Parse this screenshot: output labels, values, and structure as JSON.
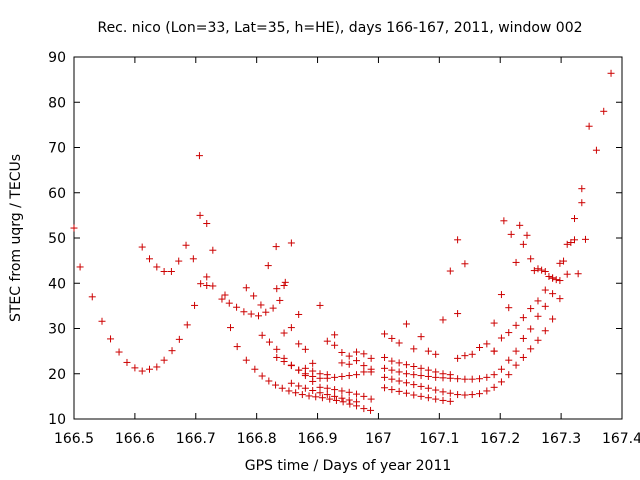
{
  "chart_data": {
    "type": "scatter",
    "title": "Rec. nico (Lon=33, Lat=35, h=HE), days 166-167, 2011, window 002",
    "xlabel": "GPS time / Days of year 2011",
    "ylabel": "STEC from uqrg / TECUs",
    "xlim": [
      166.5,
      167.4
    ],
    "ylim": [
      10,
      90
    ],
    "x_ticks": [
      166.5,
      166.6,
      166.7,
      166.8,
      166.9,
      167.0,
      167.1,
      167.2,
      167.3,
      167.4
    ],
    "x_tick_labels": [
      "166.5",
      "166.6",
      "166.7",
      "166.8",
      "166.9",
      "167",
      "167.1",
      "167.2",
      "167.3",
      "167.4"
    ],
    "y_ticks": [
      10,
      20,
      30,
      40,
      50,
      60,
      70,
      80,
      90
    ],
    "y_tick_labels": [
      "10",
      "20",
      "30",
      "40",
      "50",
      "60",
      "70",
      "80",
      "90"
    ],
    "grid": false,
    "marker": "+",
    "colors": {
      "marker": "#cc0000",
      "axis": "#000000"
    },
    "series": [
      {
        "points": [
          [
            166.5,
            52.2
          ],
          [
            166.51,
            43.6
          ],
          [
            166.53,
            37.0
          ],
          [
            166.546,
            31.6
          ],
          [
            166.56,
            27.7
          ],
          [
            166.574,
            24.8
          ],
          [
            166.587,
            22.5
          ],
          [
            166.6,
            21.3
          ],
          [
            166.612,
            20.6
          ],
          [
            166.624,
            21.0
          ],
          [
            166.636,
            21.5
          ],
          [
            166.648,
            23.0
          ],
          [
            166.661,
            25.1
          ],
          [
            166.673,
            27.6
          ],
          [
            166.686,
            30.8
          ],
          [
            166.698,
            35.1
          ],
          [
            166.708,
            39.9
          ],
          [
            166.718,
            41.4
          ],
          [
            166.728,
            39.4
          ],
          [
            166.743,
            36.5
          ],
          [
            166.755,
            35.6
          ],
          [
            166.767,
            34.7
          ],
          [
            166.779,
            33.7
          ],
          [
            166.791,
            33.2
          ],
          [
            166.803,
            32.8
          ],
          [
            166.815,
            33.6
          ],
          [
            166.827,
            34.5
          ],
          [
            166.838,
            36.2
          ],
          [
            166.847,
            40.2
          ],
          [
            166.612,
            48.0
          ],
          [
            166.624,
            45.4
          ],
          [
            166.636,
            43.6
          ],
          [
            166.648,
            42.6
          ],
          [
            166.66,
            42.6
          ],
          [
            166.672,
            44.9
          ],
          [
            166.684,
            48.4
          ],
          [
            166.696,
            45.4
          ],
          [
            166.706,
            68.2
          ],
          [
            166.707,
            55.0
          ],
          [
            166.718,
            53.2
          ],
          [
            166.728,
            47.3
          ],
          [
            166.718,
            39.5
          ],
          [
            166.748,
            37.4
          ],
          [
            166.757,
            30.2
          ],
          [
            166.768,
            26.0
          ],
          [
            166.783,
            23.0
          ],
          [
            166.797,
            21.0
          ],
          [
            166.809,
            19.5
          ],
          [
            166.82,
            18.4
          ],
          [
            166.831,
            17.5
          ],
          [
            166.842,
            16.8
          ],
          [
            166.853,
            16.2
          ],
          [
            166.864,
            15.8
          ],
          [
            166.875,
            15.4
          ],
          [
            166.886,
            15.1
          ],
          [
            166.897,
            14.9
          ],
          [
            166.908,
            14.7
          ],
          [
            166.92,
            14.4
          ],
          [
            166.931,
            14.1
          ],
          [
            166.942,
            13.8
          ],
          [
            166.953,
            13.3
          ],
          [
            166.964,
            12.9
          ],
          [
            166.976,
            12.3
          ],
          [
            166.987,
            11.9
          ],
          [
            166.783,
            39.0
          ],
          [
            166.795,
            37.2
          ],
          [
            166.807,
            35.2
          ],
          [
            166.819,
            43.9
          ],
          [
            166.832,
            48.1
          ],
          [
            166.833,
            38.8
          ],
          [
            166.845,
            39.5
          ],
          [
            166.857,
            48.9
          ],
          [
            166.869,
            33.1
          ],
          [
            166.845,
            29.0
          ],
          [
            166.857,
            30.2
          ],
          [
            166.869,
            26.6
          ],
          [
            166.88,
            25.4
          ],
          [
            166.892,
            22.3
          ],
          [
            166.904,
            35.1
          ],
          [
            166.916,
            27.2
          ],
          [
            166.928,
            26.3
          ],
          [
            166.94,
            24.7
          ],
          [
            166.952,
            23.9
          ],
          [
            166.964,
            22.9
          ],
          [
            166.976,
            21.8
          ],
          [
            166.988,
            20.4
          ],
          [
            166.809,
            28.5
          ],
          [
            166.821,
            27.0
          ],
          [
            166.833,
            25.4
          ],
          [
            166.845,
            23.4
          ],
          [
            166.857,
            21.9
          ],
          [
            166.869,
            20.8
          ],
          [
            166.88,
            20.0
          ],
          [
            166.892,
            19.4
          ],
          [
            166.904,
            19.0
          ],
          [
            166.916,
            19.0
          ],
          [
            166.928,
            19.2
          ],
          [
            166.94,
            19.4
          ],
          [
            166.952,
            19.6
          ],
          [
            166.964,
            19.8
          ],
          [
            166.976,
            20.4
          ],
          [
            166.988,
            21.0
          ],
          [
            166.833,
            23.6
          ],
          [
            166.845,
            22.7
          ],
          [
            166.857,
            21.8
          ],
          [
            166.869,
            20.8
          ],
          [
            166.88,
            19.6
          ],
          [
            166.892,
            18.3
          ],
          [
            166.904,
            17.0
          ],
          [
            166.916,
            16.8
          ],
          [
            166.928,
            16.5
          ],
          [
            166.94,
            16.2
          ],
          [
            166.952,
            15.9
          ],
          [
            166.964,
            15.5
          ],
          [
            166.976,
            15.0
          ],
          [
            166.988,
            14.4
          ],
          [
            166.857,
            17.9
          ],
          [
            166.869,
            17.3
          ],
          [
            166.88,
            16.8
          ],
          [
            166.892,
            16.3
          ],
          [
            166.904,
            15.8
          ],
          [
            166.916,
            15.4
          ],
          [
            166.928,
            15.0
          ],
          [
            166.94,
            14.6
          ],
          [
            166.952,
            14.2
          ],
          [
            166.964,
            13.8
          ],
          [
            166.88,
            21.2
          ],
          [
            166.892,
            20.6
          ],
          [
            166.904,
            20.0
          ],
          [
            166.916,
            19.8
          ],
          [
            166.928,
            28.6
          ],
          [
            166.94,
            22.4
          ],
          [
            166.952,
            22.1
          ],
          [
            166.964,
            24.8
          ],
          [
            166.976,
            24.4
          ],
          [
            166.988,
            23.4
          ],
          [
            167.01,
            28.8
          ],
          [
            167.022,
            27.8
          ],
          [
            167.034,
            26.8
          ],
          [
            167.046,
            31.0
          ],
          [
            167.058,
            25.5
          ],
          [
            167.07,
            28.2
          ],
          [
            167.082,
            25.0
          ],
          [
            167.094,
            24.3
          ],
          [
            167.106,
            31.9
          ],
          [
            167.118,
            42.7
          ],
          [
            167.13,
            49.6
          ],
          [
            167.13,
            33.3
          ],
          [
            167.142,
            44.3
          ],
          [
            167.01,
            23.6
          ],
          [
            167.022,
            22.8
          ],
          [
            167.034,
            22.4
          ],
          [
            167.046,
            22.0
          ],
          [
            167.058,
            21.6
          ],
          [
            167.07,
            21.2
          ],
          [
            167.082,
            20.8
          ],
          [
            167.094,
            20.4
          ],
          [
            167.106,
            20.0
          ],
          [
            167.118,
            19.8
          ],
          [
            167.13,
            23.4
          ],
          [
            167.142,
            24.0
          ],
          [
            167.154,
            24.3
          ],
          [
            167.166,
            25.8
          ],
          [
            167.178,
            26.6
          ],
          [
            167.19,
            25.0
          ],
          [
            167.19,
            31.2
          ],
          [
            167.202,
            27.9
          ],
          [
            167.214,
            29.1
          ],
          [
            167.226,
            30.7
          ],
          [
            167.238,
            32.4
          ],
          [
            167.25,
            34.4
          ],
          [
            167.262,
            36.1
          ],
          [
            167.274,
            38.5
          ],
          [
            167.286,
            41.2
          ],
          [
            167.298,
            44.4
          ],
          [
            167.31,
            48.6
          ],
          [
            167.322,
            54.3
          ],
          [
            167.334,
            60.9
          ],
          [
            167.346,
            74.7
          ],
          [
            167.358,
            69.4
          ],
          [
            167.37,
            78.0
          ],
          [
            167.382,
            86.4
          ],
          [
            167.01,
            16.9
          ],
          [
            167.022,
            16.5
          ],
          [
            167.034,
            16.1
          ],
          [
            167.046,
            15.7
          ],
          [
            167.058,
            15.3
          ],
          [
            167.07,
            15.0
          ],
          [
            167.082,
            14.7
          ],
          [
            167.094,
            14.4
          ],
          [
            167.106,
            14.1
          ],
          [
            167.118,
            13.9
          ],
          [
            167.01,
            19.2
          ],
          [
            167.022,
            18.8
          ],
          [
            167.034,
            18.4
          ],
          [
            167.046,
            18.0
          ],
          [
            167.058,
            17.6
          ],
          [
            167.07,
            17.2
          ],
          [
            167.082,
            16.8
          ],
          [
            167.094,
            16.4
          ],
          [
            167.106,
            16.0
          ],
          [
            167.118,
            15.7
          ],
          [
            167.13,
            15.4
          ],
          [
            167.142,
            15.3
          ],
          [
            167.154,
            15.4
          ],
          [
            167.166,
            15.6
          ],
          [
            167.178,
            16.2
          ],
          [
            167.19,
            17.0
          ],
          [
            167.202,
            18.2
          ],
          [
            167.214,
            19.8
          ],
          [
            167.226,
            21.9
          ],
          [
            167.238,
            23.6
          ],
          [
            167.25,
            25.5
          ],
          [
            167.262,
            27.4
          ],
          [
            167.274,
            29.5
          ],
          [
            167.286,
            32.1
          ],
          [
            167.298,
            36.6
          ],
          [
            167.31,
            42.0
          ],
          [
            167.322,
            49.6
          ],
          [
            167.334,
            57.8
          ],
          [
            167.01,
            21.2
          ],
          [
            167.022,
            20.8
          ],
          [
            167.034,
            20.4
          ],
          [
            167.046,
            20.0
          ],
          [
            167.058,
            19.8
          ],
          [
            167.07,
            19.6
          ],
          [
            167.082,
            19.4
          ],
          [
            167.094,
            19.2
          ],
          [
            167.106,
            19.1
          ],
          [
            167.118,
            19.0
          ],
          [
            167.13,
            18.9
          ],
          [
            167.142,
            18.8
          ],
          [
            167.154,
            18.8
          ],
          [
            167.166,
            18.9
          ],
          [
            167.178,
            19.2
          ],
          [
            167.19,
            19.8
          ],
          [
            167.202,
            21.0
          ],
          [
            167.214,
            23.0
          ],
          [
            167.226,
            25.0
          ],
          [
            167.238,
            27.8
          ],
          [
            167.25,
            29.9
          ],
          [
            167.262,
            32.7
          ],
          [
            167.274,
            34.9
          ],
          [
            167.286,
            37.7
          ],
          [
            167.19,
            25.0
          ],
          [
            167.202,
            37.5
          ],
          [
            167.214,
            34.6
          ],
          [
            167.226,
            44.6
          ],
          [
            167.238,
            48.6
          ],
          [
            167.25,
            45.4
          ],
          [
            167.262,
            43.2
          ],
          [
            167.274,
            42.6
          ],
          [
            167.286,
            41.1
          ],
          [
            167.298,
            40.6
          ],
          [
            167.206,
            53.8
          ],
          [
            167.218,
            50.8
          ],
          [
            167.232,
            52.8
          ],
          [
            167.244,
            50.6
          ],
          [
            167.256,
            42.8
          ],
          [
            167.268,
            42.9
          ],
          [
            167.28,
            41.5
          ],
          [
            167.292,
            40.8
          ],
          [
            167.304,
            44.9
          ],
          [
            167.316,
            49.0
          ],
          [
            167.328,
            42.1
          ],
          [
            167.34,
            49.7
          ]
        ]
      }
    ]
  }
}
